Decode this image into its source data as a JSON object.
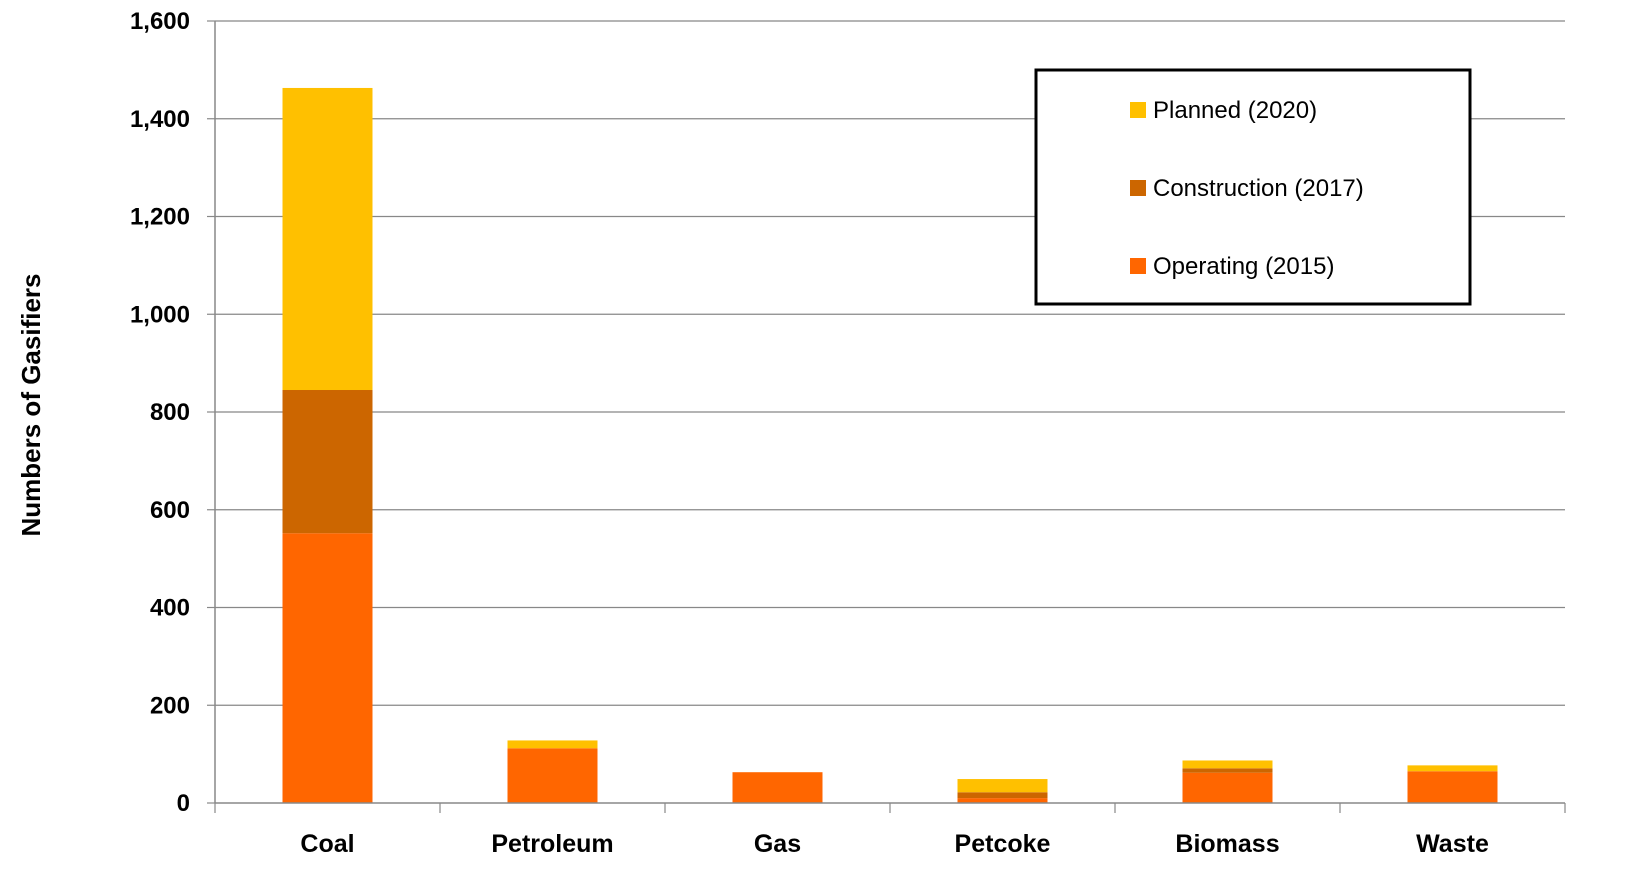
{
  "chart_data": {
    "type": "bar",
    "stacked": true,
    "title": "",
    "xlabel": "",
    "ylabel": "Numbers of Gasifiers",
    "ylim": [
      0,
      1600
    ],
    "y_ticks": [
      "0",
      "200",
      "400",
      "600",
      "800",
      "1,000",
      "1,200",
      "1,400",
      "1,600"
    ],
    "grid": true,
    "legend_position": "top-right",
    "categories": [
      "Coal",
      "Petroleum",
      "Gas",
      "Petcoke",
      "Biomass",
      "Waste"
    ],
    "series": [
      {
        "name": "Operating (2015)",
        "color": "#FF6600",
        "values": [
          552,
          112,
          63,
          10,
          62,
          65
        ]
      },
      {
        "name": "Construction (2017)",
        "color": "#CC6600",
        "values": [
          293,
          0,
          0,
          12,
          9,
          0
        ]
      },
      {
        "name": "Planned (2020)",
        "color": "#FFC000",
        "values": [
          618,
          16,
          0,
          27,
          16,
          12
        ]
      }
    ],
    "legend_order": [
      "Planned (2020)",
      "Construction (2017)",
      "Operating (2015)"
    ]
  }
}
